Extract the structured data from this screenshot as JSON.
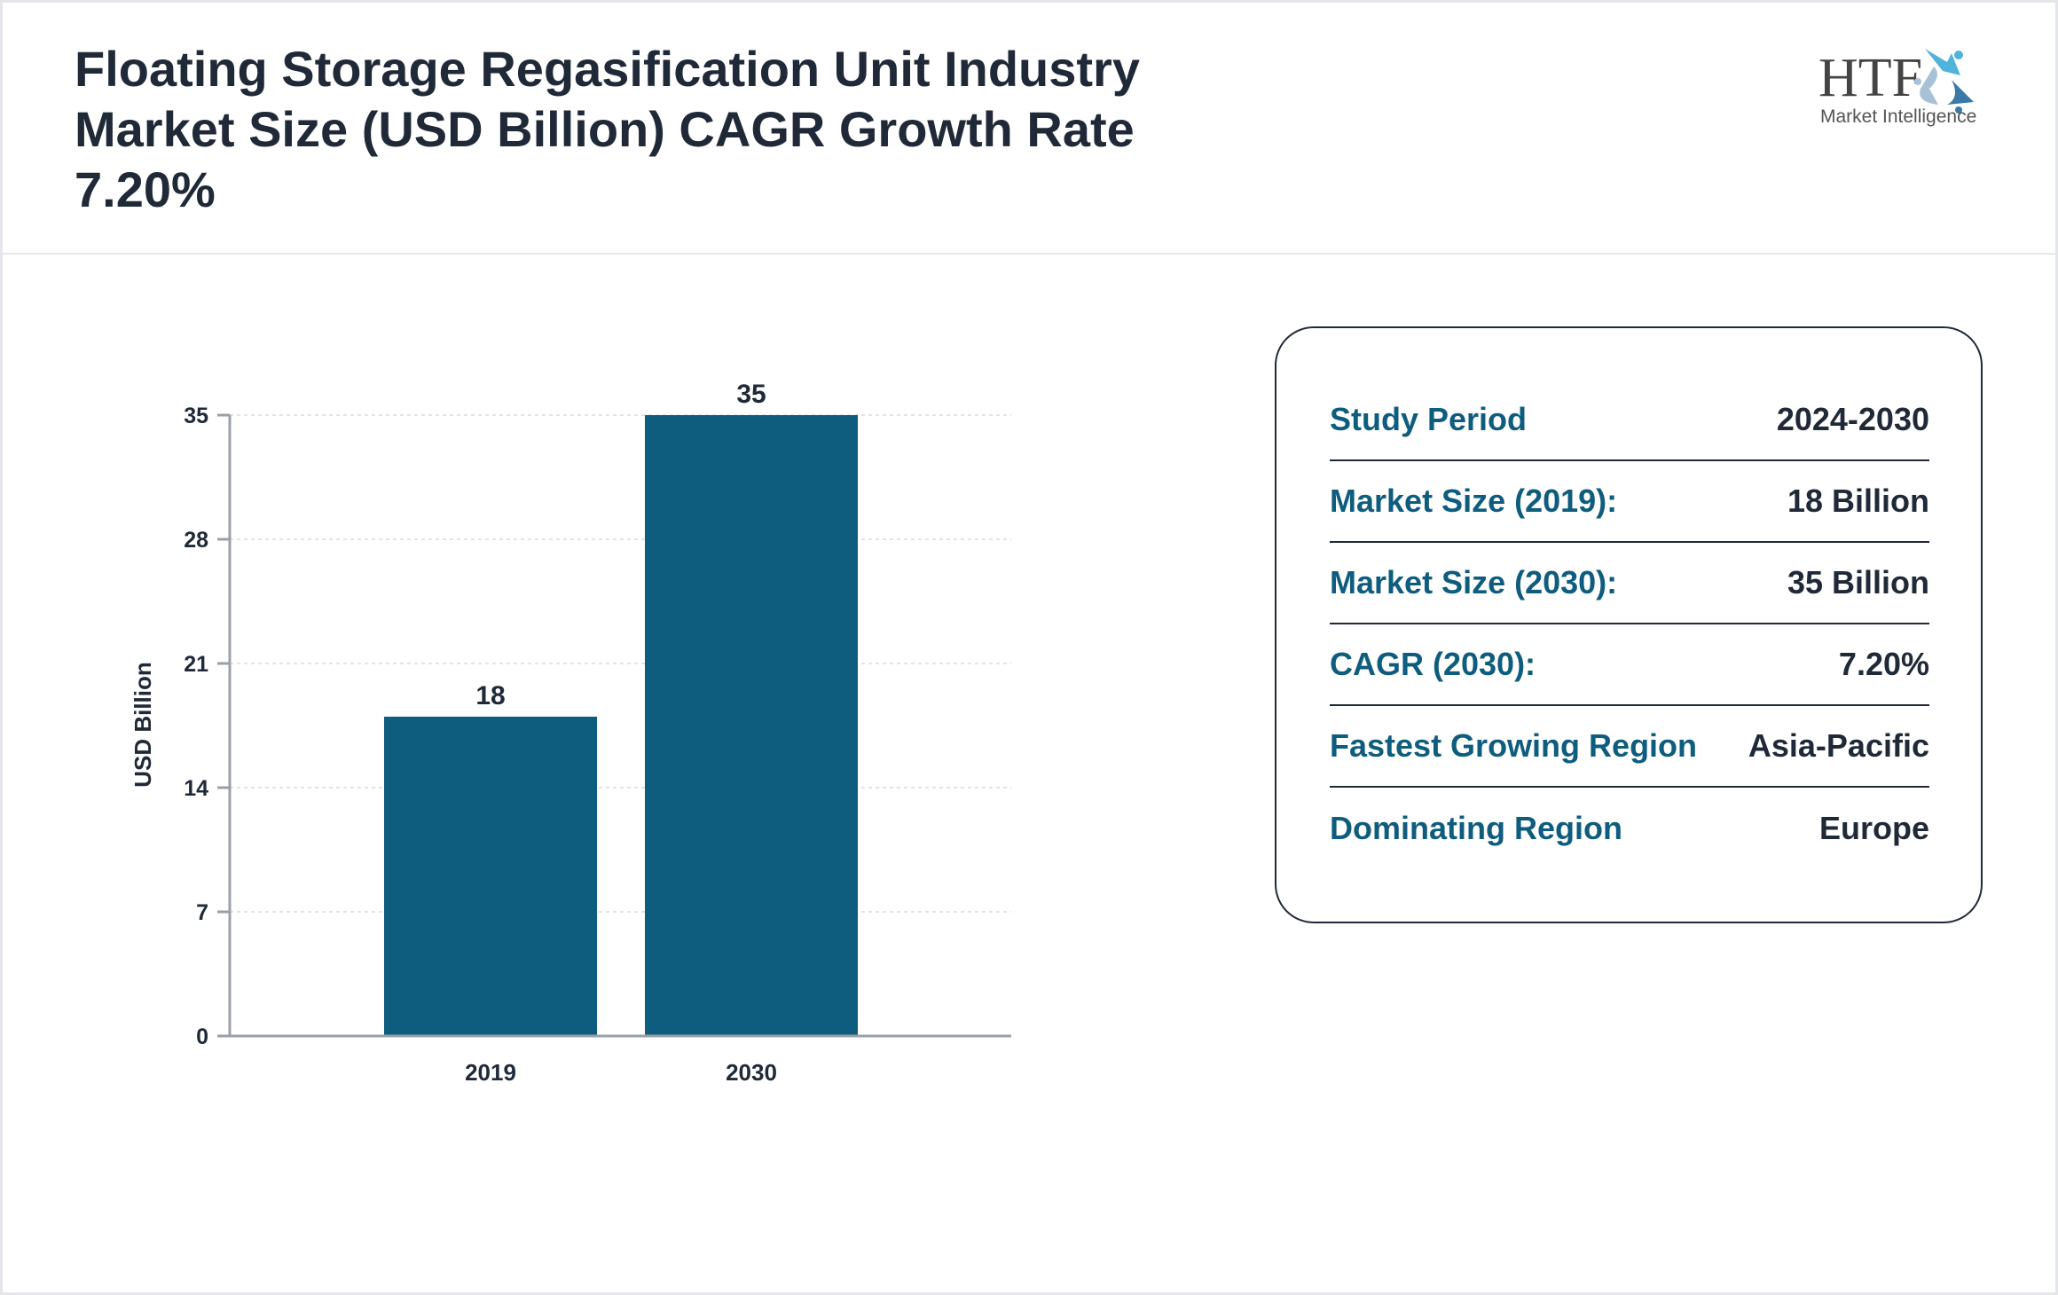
{
  "header": {
    "title": "Floating Storage Regasification Unit Industry Market Size (USD Billion) CAGR Growth Rate 7.20%",
    "logo_text": "HTF",
    "logo_subtext": "Market Intelligence"
  },
  "chart_data": {
    "type": "bar",
    "categories": [
      "2019",
      "2030"
    ],
    "values": [
      18,
      35
    ],
    "ylabel": "USD Billion",
    "ylim": [
      0,
      35
    ],
    "yticks": [
      0,
      7,
      14,
      21,
      28,
      35
    ],
    "grid": true,
    "bar_color": "#0e5c7e"
  },
  "info": {
    "rows": [
      {
        "label": "Study Period",
        "value": "2024-2030"
      },
      {
        "label": "Market Size (2019):",
        "value": "18 Billion"
      },
      {
        "label": "Market Size (2030):",
        "value": "35 Billion"
      },
      {
        "label": "CAGR (2030):",
        "value": "7.20%"
      },
      {
        "label": "Fastest Growing Region",
        "value": "Asia-Pacific"
      },
      {
        "label": "Dominating Region",
        "value": "Europe"
      }
    ]
  }
}
